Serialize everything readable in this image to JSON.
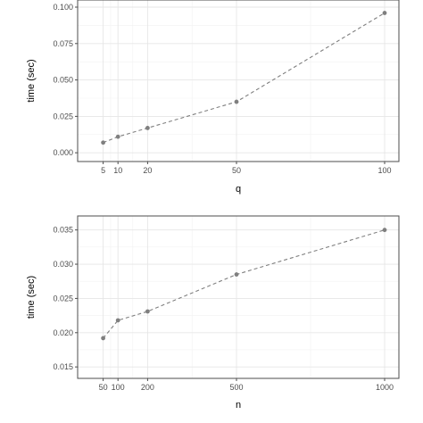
{
  "chart_data": [
    {
      "type": "line",
      "xlabel": "q",
      "ylabel": "time (sec)",
      "x": [
        5,
        10,
        20,
        50,
        100
      ],
      "series": [
        {
          "values": [
            0.007,
            0.011,
            0.017,
            0.035,
            0.096
          ]
        }
      ],
      "xticks": [
        5,
        10,
        20,
        50,
        100
      ],
      "xtick_labels": [
        "5",
        "10",
        "20",
        "50",
        "100"
      ],
      "yticks": [
        0,
        0.025,
        0.05,
        0.075,
        0.1
      ],
      "ytick_labels": [
        "0.000",
        "0.025",
        "0.050",
        "0.075",
        "0.100"
      ],
      "xlim": [
        0,
        100
      ],
      "ylim": [
        -0.0005,
        0.1
      ],
      "grid": true,
      "line_style": "dashed",
      "color": "#7f7f7f"
    },
    {
      "type": "line",
      "xlabel": "n",
      "ylabel": "time (sec)",
      "x": [
        50,
        100,
        200,
        500,
        1000
      ],
      "series": [
        {
          "values": [
            0.0192,
            0.0218,
            0.0231,
            0.0285,
            0.035
          ]
        }
      ],
      "xticks": [
        50,
        100,
        200,
        500,
        1000
      ],
      "xtick_labels": [
        "50",
        "100",
        "200",
        "500",
        "1000"
      ],
      "yticks": [
        0.015,
        0.02,
        0.025,
        0.03,
        0.035
      ],
      "ytick_labels": [
        "0.015",
        "0.020",
        "0.025",
        "0.030",
        "0.035"
      ],
      "xlim": [
        0,
        1000
      ],
      "ylim": [
        0.0145,
        0.036
      ],
      "grid": true,
      "line_style": "dashed",
      "color": "#7f7f7f"
    }
  ]
}
